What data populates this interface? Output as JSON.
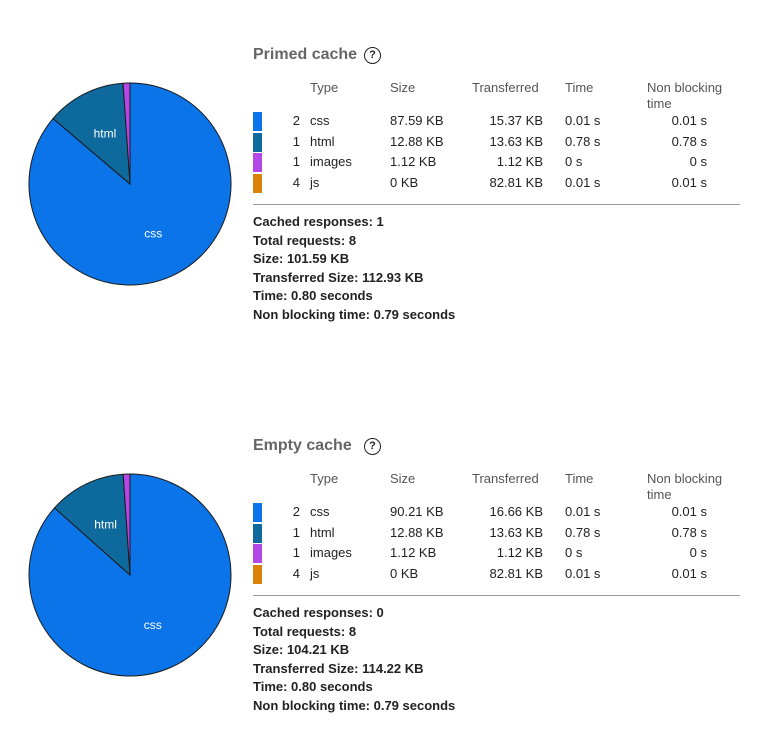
{
  "chart_data": [
    {
      "type": "pie",
      "categories": [
        "css",
        "html",
        "images",
        "js"
      ],
      "values": [
        87.59,
        12.88,
        1.12,
        0
      ],
      "value_labels": [
        "87.59 KB",
        "12.88 KB",
        "1.12 KB",
        "0 KB"
      ],
      "colors": [
        "#0a74e8",
        "#0e6a9c",
        "#b547e6",
        "#d98309"
      ]
    },
    {
      "type": "pie",
      "categories": [
        "css",
        "html",
        "images",
        "js"
      ],
      "values": [
        90.21,
        12.88,
        1.12,
        0
      ],
      "value_labels": [
        "90.21 KB",
        "12.88 KB",
        "1.12 KB",
        "0 KB"
      ],
      "colors": [
        "#0a74e8",
        "#0e6a9c",
        "#b547e6",
        "#d98309"
      ]
    }
  ],
  "panels": [
    {
      "title": "Primed cache",
      "help_icon": "?",
      "columns": [
        "Type",
        "Size",
        "Transferred",
        "Time",
        "Non blocking time"
      ],
      "rows": [
        {
          "count": 2,
          "transferred": "15.37 KB",
          "time": "0.01 s",
          "non_blocking_time": "0.01 s"
        },
        {
          "count": 1,
          "transferred": "13.63 KB",
          "time": "0.78 s",
          "non_blocking_time": "0.78 s"
        },
        {
          "count": 1,
          "transferred": "1.12 KB",
          "time": "0 s",
          "non_blocking_time": "0 s"
        },
        {
          "count": 4,
          "transferred": "82.81 KB",
          "time": "0.01 s",
          "non_blocking_time": "0.01 s"
        }
      ],
      "summary": [
        "Cached responses: 1",
        "Total requests: 8",
        "Size: 101.59 KB",
        "Transferred Size: 112.93 KB",
        "Time: 0.80 seconds",
        "Non blocking time: 0.79 seconds"
      ]
    },
    {
      "title": "Empty cache",
      "help_icon": "?",
      "columns": [
        "Type",
        "Size",
        "Transferred",
        "Time",
        "Non blocking time"
      ],
      "rows": [
        {
          "count": 2,
          "transferred": "16.66 KB",
          "time": "0.01 s",
          "non_blocking_time": "0.01 s"
        },
        {
          "count": 1,
          "transferred": "13.63 KB",
          "time": "0.78 s",
          "non_blocking_time": "0.78 s"
        },
        {
          "count": 1,
          "transferred": "1.12 KB",
          "time": "0 s",
          "non_blocking_time": "0 s"
        },
        {
          "count": 4,
          "transferred": "82.81 KB",
          "time": "0.01 s",
          "non_blocking_time": "0.01 s"
        }
      ],
      "summary": [
        "Cached responses: 0",
        "Total requests: 8",
        "Size: 104.21 KB",
        "Transferred Size: 114.22 KB",
        "Time: 0.80 seconds",
        "Non blocking time: 0.79 seconds"
      ]
    }
  ]
}
